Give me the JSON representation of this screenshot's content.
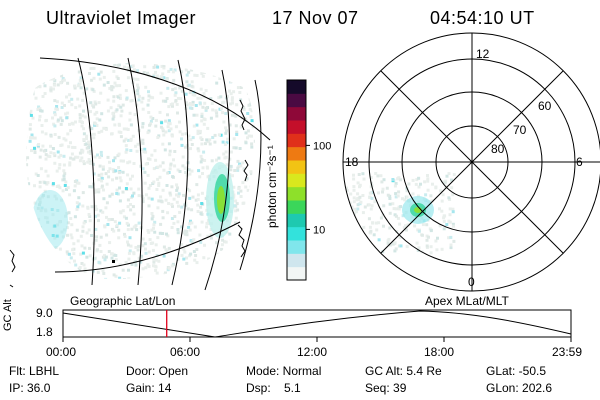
{
  "header": {
    "title": "Ultraviolet Imager",
    "date": "17 Nov 07",
    "time": "04:54:10 UT"
  },
  "colorbar": {
    "label": "photon cm⁻²s⁻¹",
    "ticks": [
      "100",
      "10"
    ],
    "tick_values": [
      100,
      10
    ],
    "range": [
      2.5,
      600
    ],
    "scale": "log",
    "colors": [
      "#f2f6f5",
      "#cfe6ee",
      "#80e6ec",
      "#33e2dc",
      "#1ec9b0",
      "#3bd65a",
      "#8ee02a",
      "#d9e81e",
      "#f2c314",
      "#ee7a12",
      "#e0301a",
      "#c40f2a",
      "#8e0838",
      "#4a0a42",
      "#150a2a"
    ]
  },
  "polar": {
    "mlt_labels": [
      "12",
      "18",
      "6",
      "0"
    ],
    "mlat_labels": [
      "60",
      "70",
      "80"
    ]
  },
  "panels": {
    "left_label": "Geographic Lat/Lon",
    "right_label": "Apex MLat/MLT"
  },
  "timeline": {
    "ylabel": "GC Alt",
    "ymax_label": "9.0",
    "ymin_label": "1.8",
    "xticks": [
      "00:00",
      "06:00",
      "12:00",
      "18:00",
      "23:59"
    ],
    "cursor_hour": 4.9,
    "marker_color": "#e0001a"
  },
  "info": {
    "flt": "Flt: LBHL",
    "ip": "IP: 36.0",
    "door": "Door: Open",
    "gain": "Gain: 14",
    "mode": "Mode: Normal",
    "dsp": "Dsp:    5.1",
    "gcalt": "GC Alt: 5.4 Re",
    "seq": "Seq: 39",
    "glat": "GLat: -50.5",
    "glon": "GLon: 202.6"
  }
}
